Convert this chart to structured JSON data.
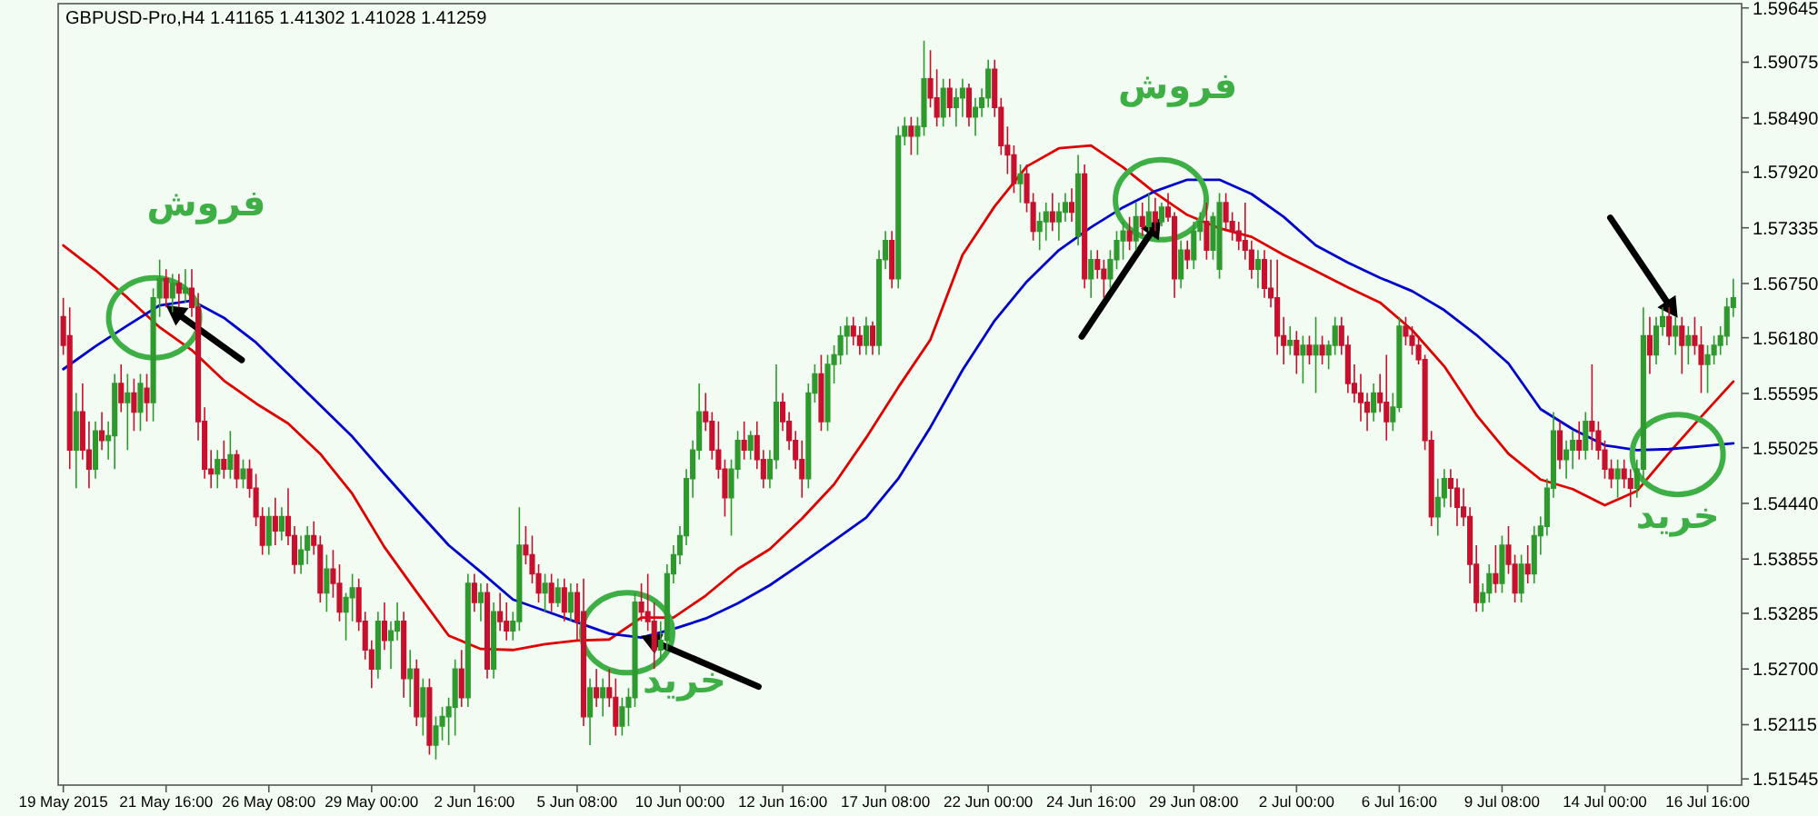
{
  "chart_data": {
    "type": "candlestick",
    "title": "GBPUSD-Pro,H4  1.41165 1.41302 1.41028 1.41259",
    "categories": [
      "19 May 2015",
      null,
      null,
      null,
      null,
      null,
      null,
      null,
      null,
      null,
      null,
      null,
      null,
      null,
      null,
      null,
      "21 May 16:00",
      null,
      null,
      null,
      null,
      null,
      null,
      null,
      null,
      null,
      null,
      null,
      null,
      null,
      null,
      null,
      "26 May 08:00",
      null,
      null,
      null,
      null,
      null,
      null,
      null,
      null,
      null,
      null,
      null,
      null,
      null,
      null,
      null,
      "29 May 00:00",
      null,
      null,
      null,
      null,
      null,
      null,
      null,
      null,
      null,
      null,
      null,
      null,
      null,
      null,
      null,
      "2 Jun 16:00",
      null,
      null,
      null,
      null,
      null,
      null,
      null,
      null,
      null,
      null,
      null,
      null,
      null,
      null,
      null,
      "5 Jun 08:00",
      null,
      null,
      null,
      null,
      null,
      null,
      null,
      null,
      null,
      null,
      null,
      null,
      null,
      null,
      null,
      "10 Jun 00:00",
      null,
      null,
      null,
      null,
      null,
      null,
      null,
      null,
      null,
      null,
      null,
      null,
      null,
      null,
      null,
      "12 Jun 16:00",
      null,
      null,
      null,
      null,
      null,
      null,
      null,
      null,
      null,
      null,
      null,
      null,
      null,
      null,
      null,
      "17 Jun 08:00",
      null,
      null,
      null,
      null,
      null,
      null,
      null,
      null,
      null,
      null,
      null,
      null,
      null,
      null,
      null,
      "22 Jun 00:00",
      null,
      null,
      null,
      null,
      null,
      null,
      null,
      null,
      null,
      null,
      null,
      null,
      null,
      null,
      null,
      "24 Jun 16:00",
      null,
      null,
      null,
      null,
      null,
      null,
      null,
      null,
      null,
      null,
      null,
      null,
      null,
      null,
      null,
      "29 Jun 08:00",
      null,
      null,
      null,
      null,
      null,
      null,
      null,
      null,
      null,
      null,
      null,
      null,
      null,
      null,
      null,
      "2 Jul 00:00",
      null,
      null,
      null,
      null,
      null,
      null,
      null,
      null,
      null,
      null,
      null,
      null,
      null,
      null,
      null,
      "6 Jul 16:00",
      null,
      null,
      null,
      null,
      null,
      null,
      null,
      null,
      null,
      null,
      null,
      null,
      null,
      null,
      null,
      "9 Jul 08:00",
      null,
      null,
      null,
      null,
      null,
      null,
      null,
      null,
      null,
      null,
      null,
      null,
      null,
      null,
      null,
      "14 Jul 00:00",
      null,
      null,
      null,
      null,
      null,
      null,
      null,
      null,
      null,
      null,
      null,
      null,
      null,
      null,
      null,
      "16 Jul 16:00",
      null,
      null,
      null,
      null
    ],
    "ohlc": [
      [
        1.564,
        1.566,
        1.56,
        1.561
      ],
      [
        1.562,
        1.565,
        1.548,
        1.55
      ],
      [
        1.55,
        1.556,
        1.546,
        1.554
      ],
      [
        1.554,
        1.557,
        1.549,
        1.55
      ],
      [
        1.55,
        1.553,
        1.546,
        1.548
      ],
      [
        1.548,
        1.553,
        1.547,
        1.552
      ],
      [
        1.552,
        1.554,
        1.55,
        1.551
      ],
      [
        1.551,
        1.553,
        1.549,
        1.5515
      ],
      [
        1.5515,
        1.558,
        1.548,
        1.557
      ],
      [
        1.557,
        1.559,
        1.554,
        1.555
      ],
      [
        1.555,
        1.558,
        1.55,
        1.556
      ],
      [
        1.556,
        1.5575,
        1.552,
        1.554
      ],
      [
        1.554,
        1.558,
        1.552,
        1.557
      ],
      [
        1.5565,
        1.558,
        1.553,
        1.555
      ],
      [
        1.555,
        1.567,
        1.553,
        1.566
      ],
      [
        1.566,
        1.57,
        1.564,
        1.568
      ],
      [
        1.568,
        1.569,
        1.565,
        1.566
      ],
      [
        1.566,
        1.5685,
        1.5645,
        1.5675
      ],
      [
        1.5675,
        1.5685,
        1.565,
        1.5665
      ],
      [
        1.5665,
        1.569,
        1.5655,
        1.567
      ],
      [
        1.567,
        1.569,
        1.564,
        1.565
      ],
      [
        1.565,
        1.5665,
        1.551,
        1.553
      ],
      [
        1.553,
        1.5545,
        1.547,
        1.548
      ],
      [
        1.548,
        1.55,
        1.546,
        1.5475
      ],
      [
        1.5475,
        1.55,
        1.546,
        1.549
      ],
      [
        1.549,
        1.551,
        1.547,
        1.548
      ],
      [
        1.548,
        1.552,
        1.547,
        1.5495
      ],
      [
        1.5495,
        1.55,
        1.546,
        1.547
      ],
      [
        1.547,
        1.549,
        1.546,
        1.548
      ],
      [
        1.548,
        1.549,
        1.545,
        1.546
      ],
      [
        1.546,
        1.5475,
        1.542,
        1.543
      ],
      [
        1.543,
        1.544,
        1.539,
        1.54
      ],
      [
        1.54,
        1.544,
        1.539,
        1.543
      ],
      [
        1.543,
        1.545,
        1.54,
        1.5415
      ],
      [
        1.5415,
        1.544,
        1.5405,
        1.543
      ],
      [
        1.543,
        1.546,
        1.54,
        1.541
      ],
      [
        1.541,
        1.542,
        1.537,
        1.538
      ],
      [
        1.538,
        1.541,
        1.537,
        1.5395
      ],
      [
        1.5395,
        1.542,
        1.538,
        1.541
      ],
      [
        1.541,
        1.5425,
        1.539,
        1.54
      ],
      [
        1.54,
        1.541,
        1.534,
        1.535
      ],
      [
        1.535,
        1.539,
        1.533,
        1.5375
      ],
      [
        1.5375,
        1.5395,
        1.5345,
        1.536
      ],
      [
        1.536,
        1.538,
        1.532,
        1.533
      ],
      [
        1.533,
        1.535,
        1.53,
        1.5345
      ],
      [
        1.5345,
        1.537,
        1.532,
        1.5355
      ],
      [
        1.5355,
        1.5365,
        1.531,
        1.532
      ],
      [
        1.532,
        1.533,
        1.528,
        1.529
      ],
      [
        1.529,
        1.53,
        1.525,
        1.527
      ],
      [
        1.527,
        1.533,
        1.526,
        1.532
      ],
      [
        1.532,
        1.534,
        1.529,
        1.53
      ],
      [
        1.53,
        1.532,
        1.527,
        1.531
      ],
      [
        1.531,
        1.534,
        1.53,
        1.532
      ],
      [
        1.532,
        1.533,
        1.524,
        1.526
      ],
      [
        1.526,
        1.529,
        1.523,
        1.527
      ],
      [
        1.527,
        1.528,
        1.521,
        1.522
      ],
      [
        1.522,
        1.526,
        1.52,
        1.525
      ],
      [
        1.525,
        1.526,
        1.518,
        1.519
      ],
      [
        1.519,
        1.522,
        1.5175,
        1.521
      ],
      [
        1.521,
        1.523,
        1.5195,
        1.522
      ],
      [
        1.522,
        1.524,
        1.519,
        1.523
      ],
      [
        1.523,
        1.528,
        1.52,
        1.527
      ],
      [
        1.527,
        1.529,
        1.523,
        1.524
      ],
      [
        1.524,
        1.537,
        1.523,
        1.536
      ],
      [
        1.536,
        1.537,
        1.533,
        1.534
      ],
      [
        1.534,
        1.536,
        1.532,
        1.535
      ],
      [
        1.535,
        1.536,
        1.526,
        1.527
      ],
      [
        1.527,
        1.534,
        1.526,
        1.533
      ],
      [
        1.533,
        1.535,
        1.531,
        1.532
      ],
      [
        1.532,
        1.534,
        1.53,
        1.531
      ],
      [
        1.531,
        1.533,
        1.53,
        1.532
      ],
      [
        1.532,
        1.544,
        1.531,
        1.54
      ],
      [
        1.54,
        1.542,
        1.538,
        1.539
      ],
      [
        1.539,
        1.541,
        1.536,
        1.537
      ],
      [
        1.537,
        1.538,
        1.534,
        1.535
      ],
      [
        1.535,
        1.537,
        1.533,
        1.536
      ],
      [
        1.536,
        1.537,
        1.533,
        1.534
      ],
      [
        1.534,
        1.5365,
        1.5335,
        1.5355
      ],
      [
        1.5355,
        1.5365,
        1.532,
        1.533
      ],
      [
        1.533,
        1.536,
        1.532,
        1.535
      ],
      [
        1.535,
        1.536,
        1.53,
        1.532
      ],
      [
        1.533,
        1.5365,
        1.521,
        1.522
      ],
      [
        1.522,
        1.526,
        1.519,
        1.525
      ],
      [
        1.525,
        1.527,
        1.523,
        1.524
      ],
      [
        1.524,
        1.526,
        1.522,
        1.525
      ],
      [
        1.525,
        1.527,
        1.523,
        1.524
      ],
      [
        1.524,
        1.526,
        1.52,
        1.521
      ],
      [
        1.521,
        1.524,
        1.52,
        1.523
      ],
      [
        1.523,
        1.525,
        1.521,
        1.524
      ],
      [
        1.524,
        1.535,
        1.523,
        1.534
      ],
      [
        1.534,
        1.536,
        1.532,
        1.533
      ],
      [
        1.533,
        1.537,
        1.531,
        1.532
      ],
      [
        1.532,
        1.534,
        1.527,
        1.529
      ],
      [
        1.529,
        1.532,
        1.528,
        1.53
      ],
      [
        1.53,
        1.538,
        1.529,
        1.537
      ],
      [
        1.537,
        1.54,
        1.536,
        1.539
      ],
      [
        1.539,
        1.542,
        1.538,
        1.541
      ],
      [
        1.541,
        1.548,
        1.54,
        1.547
      ],
      [
        1.547,
        1.551,
        1.545,
        1.55
      ],
      [
        1.55,
        1.557,
        1.549,
        1.554
      ],
      [
        1.554,
        1.556,
        1.552,
        1.553
      ],
      [
        1.553,
        1.554,
        1.549,
        1.55
      ],
      [
        1.55,
        1.553,
        1.547,
        1.548
      ],
      [
        1.548,
        1.549,
        1.543,
        1.545
      ],
      [
        1.545,
        1.549,
        1.541,
        1.548
      ],
      [
        1.548,
        1.552,
        1.547,
        1.551
      ],
      [
        1.551,
        1.553,
        1.549,
        1.55
      ],
      [
        1.55,
        1.552,
        1.549,
        1.5515
      ],
      [
        1.5515,
        1.553,
        1.548,
        1.549
      ],
      [
        1.549,
        1.55,
        1.546,
        1.547
      ],
      [
        1.547,
        1.55,
        1.546,
        1.549
      ],
      [
        1.549,
        1.559,
        1.548,
        1.555
      ],
      [
        1.555,
        1.556,
        1.552,
        1.553
      ],
      [
        1.553,
        1.554,
        1.55,
        1.551
      ],
      [
        1.551,
        1.552,
        1.548,
        1.549
      ],
      [
        1.549,
        1.551,
        1.545,
        1.547
      ],
      [
        1.547,
        1.557,
        1.546,
        1.556
      ],
      [
        1.556,
        1.559,
        1.555,
        1.558
      ],
      [
        1.558,
        1.56,
        1.552,
        1.553
      ],
      [
        1.553,
        1.56,
        1.552,
        1.559
      ],
      [
        1.559,
        1.561,
        1.557,
        1.56
      ],
      [
        1.56,
        1.563,
        1.559,
        1.562
      ],
      [
        1.562,
        1.564,
        1.56,
        1.563
      ],
      [
        1.563,
        1.564,
        1.561,
        1.562
      ],
      [
        1.562,
        1.563,
        1.56,
        1.561
      ],
      [
        1.561,
        1.564,
        1.56,
        1.563
      ],
      [
        1.563,
        1.5635,
        1.56,
        1.561
      ],
      [
        1.561,
        1.571,
        1.56,
        1.57
      ],
      [
        1.57,
        1.573,
        1.569,
        1.572
      ],
      [
        1.572,
        1.573,
        1.567,
        1.568
      ],
      [
        1.568,
        1.584,
        1.567,
        1.583
      ],
      [
        1.583,
        1.585,
        1.582,
        1.584
      ],
      [
        1.584,
        1.585,
        1.581,
        1.583
      ],
      [
        1.583,
        1.585,
        1.581,
        1.584
      ],
      [
        1.584,
        1.593,
        1.583,
        1.589
      ],
      [
        1.589,
        1.592,
        1.586,
        1.587
      ],
      [
        1.587,
        1.59,
        1.584,
        1.585
      ],
      [
        1.585,
        1.589,
        1.584,
        1.588
      ],
      [
        1.588,
        1.589,
        1.585,
        1.586
      ],
      [
        1.586,
        1.588,
        1.584,
        1.587
      ],
      [
        1.587,
        1.589,
        1.585,
        1.588
      ],
      [
        1.588,
        1.5885,
        1.584,
        1.585
      ],
      [
        1.585,
        1.587,
        1.583,
        1.586
      ],
      [
        1.586,
        1.588,
        1.585,
        1.587
      ],
      [
        1.587,
        1.591,
        1.586,
        1.59
      ],
      [
        1.59,
        1.591,
        1.585,
        1.586
      ],
      [
        1.586,
        1.587,
        1.581,
        1.582
      ],
      [
        1.582,
        1.584,
        1.579,
        1.581
      ],
      [
        1.581,
        1.582,
        1.577,
        1.578
      ],
      [
        1.578,
        1.58,
        1.576,
        1.579
      ],
      [
        1.579,
        1.58,
        1.575,
        1.576
      ],
      [
        1.576,
        1.577,
        1.572,
        1.573
      ],
      [
        1.573,
        1.575,
        1.571,
        1.574
      ],
      [
        1.574,
        1.576,
        1.572,
        1.575
      ],
      [
        1.575,
        1.577,
        1.573,
        1.574
      ],
      [
        1.574,
        1.576,
        1.572,
        1.575
      ],
      [
        1.575,
        1.577,
        1.574,
        1.576
      ],
      [
        1.576,
        1.5775,
        1.574,
        1.575
      ],
      [
        1.5725,
        1.581,
        1.5715,
        1.579
      ],
      [
        1.579,
        1.58,
        1.567,
        1.568
      ],
      [
        1.568,
        1.571,
        1.566,
        1.57
      ],
      [
        1.57,
        1.571,
        1.568,
        1.569
      ],
      [
        1.569,
        1.57,
        1.566,
        1.568
      ],
      [
        1.568,
        1.571,
        1.567,
        1.57
      ],
      [
        1.57,
        1.573,
        1.569,
        1.572
      ],
      [
        1.572,
        1.574,
        1.57,
        1.573
      ],
      [
        1.573,
        1.5745,
        1.571,
        1.572
      ],
      [
        1.572,
        1.576,
        1.571,
        1.5745
      ],
      [
        1.5745,
        1.576,
        1.5725,
        1.5735
      ],
      [
        1.5735,
        1.577,
        1.573,
        1.575
      ],
      [
        1.575,
        1.5765,
        1.573,
        1.574
      ],
      [
        1.574,
        1.576,
        1.5735,
        1.5755
      ],
      [
        1.5755,
        1.577,
        1.574,
        1.5745
      ],
      [
        1.5745,
        1.575,
        1.566,
        1.568
      ],
      [
        1.568,
        1.572,
        1.567,
        1.571
      ],
      [
        1.571,
        1.572,
        1.569,
        1.57
      ],
      [
        1.57,
        1.574,
        1.569,
        1.573
      ],
      [
        1.573,
        1.575,
        1.572,
        1.574
      ],
      [
        1.574,
        1.576,
        1.57,
        1.571
      ],
      [
        1.571,
        1.575,
        1.57,
        1.5745
      ],
      [
        1.569,
        1.577,
        1.568,
        1.576
      ],
      [
        1.576,
        1.577,
        1.573,
        1.574
      ],
      [
        1.574,
        1.575,
        1.572,
        1.573
      ],
      [
        1.573,
        1.574,
        1.571,
        1.572
      ],
      [
        1.572,
        1.576,
        1.57,
        1.571
      ],
      [
        1.571,
        1.572,
        1.568,
        1.569
      ],
      [
        1.569,
        1.571,
        1.567,
        1.57
      ],
      [
        1.57,
        1.571,
        1.566,
        1.567
      ],
      [
        1.567,
        1.57,
        1.565,
        1.566
      ],
      [
        1.566,
        1.57,
        1.56,
        1.562
      ],
      [
        1.562,
        1.564,
        1.559,
        1.561
      ],
      [
        1.561,
        1.563,
        1.56,
        1.5615
      ],
      [
        1.5615,
        1.5625,
        1.558,
        1.56
      ],
      [
        1.56,
        1.562,
        1.557,
        1.561
      ],
      [
        1.561,
        1.562,
        1.559,
        1.56
      ],
      [
        1.56,
        1.564,
        1.556,
        1.561
      ],
      [
        1.561,
        1.562,
        1.559,
        1.56
      ],
      [
        1.56,
        1.5615,
        1.5585,
        1.561
      ],
      [
        1.561,
        1.564,
        1.56,
        1.563
      ],
      [
        1.563,
        1.564,
        1.56,
        1.561
      ],
      [
        1.561,
        1.562,
        1.556,
        1.557
      ],
      [
        1.557,
        1.559,
        1.555,
        1.556
      ],
      [
        1.556,
        1.558,
        1.553,
        1.555
      ],
      [
        1.555,
        1.556,
        1.552,
        1.554
      ],
      [
        1.554,
        1.557,
        1.553,
        1.556
      ],
      [
        1.556,
        1.558,
        1.554,
        1.555
      ],
      [
        1.555,
        1.56,
        1.551,
        1.553
      ],
      [
        1.553,
        1.556,
        1.552,
        1.5545
      ],
      [
        1.5545,
        1.564,
        1.554,
        1.563
      ],
      [
        1.563,
        1.564,
        1.561,
        1.562
      ],
      [
        1.562,
        1.563,
        1.56,
        1.561
      ],
      [
        1.561,
        1.562,
        1.559,
        1.5595
      ],
      [
        1.5595,
        1.56,
        1.55,
        1.551
      ],
      [
        1.551,
        1.552,
        1.542,
        1.543
      ],
      [
        1.543,
        1.547,
        1.541,
        1.545
      ],
      [
        1.545,
        1.548,
        1.544,
        1.547
      ],
      [
        1.547,
        1.548,
        1.544,
        1.546
      ],
      [
        1.546,
        1.547,
        1.542,
        1.544
      ],
      [
        1.544,
        1.546,
        1.542,
        1.543
      ],
      [
        1.543,
        1.544,
        1.536,
        1.538
      ],
      [
        1.538,
        1.54,
        1.533,
        1.534
      ],
      [
        1.534,
        1.536,
        1.533,
        1.535
      ],
      [
        1.535,
        1.538,
        1.534,
        1.537
      ],
      [
        1.537,
        1.54,
        1.535,
        1.536
      ],
      [
        1.536,
        1.541,
        1.535,
        1.54
      ],
      [
        1.54,
        1.542,
        1.537,
        1.538
      ],
      [
        1.538,
        1.539,
        1.534,
        1.535
      ],
      [
        1.535,
        1.539,
        1.534,
        1.538
      ],
      [
        1.538,
        1.54,
        1.536,
        1.537
      ],
      [
        1.537,
        1.542,
        1.536,
        1.541
      ],
      [
        1.541,
        1.543,
        1.539,
        1.542
      ],
      [
        1.542,
        1.547,
        1.541,
        1.546
      ],
      [
        1.546,
        1.554,
        1.545,
        1.552
      ],
      [
        1.552,
        1.553,
        1.548,
        1.549
      ],
      [
        1.549,
        1.551,
        1.547,
        1.55
      ],
      [
        1.55,
        1.552,
        1.548,
        1.551
      ],
      [
        1.551,
        1.553,
        1.549,
        1.55
      ],
      [
        1.55,
        1.554,
        1.549,
        1.553
      ],
      [
        1.553,
        1.559,
        1.55,
        1.552
      ],
      [
        1.552,
        1.553,
        1.549,
        1.55
      ],
      [
        1.55,
        1.551,
        1.547,
        1.548
      ],
      [
        1.548,
        1.549,
        1.546,
        1.547
      ],
      [
        1.547,
        1.549,
        1.545,
        1.548
      ],
      [
        1.548,
        1.549,
        1.546,
        1.547
      ],
      [
        1.547,
        1.548,
        1.544,
        1.546
      ],
      [
        1.546,
        1.549,
        1.545,
        1.548
      ],
      [
        1.548,
        1.565,
        1.547,
        1.562
      ],
      [
        1.562,
        1.564,
        1.558,
        1.56
      ],
      [
        1.56,
        1.564,
        1.559,
        1.563
      ],
      [
        1.563,
        1.565,
        1.562,
        1.564
      ],
      [
        1.564,
        1.565,
        1.561,
        1.562
      ],
      [
        1.562,
        1.564,
        1.56,
        1.563
      ],
      [
        1.563,
        1.564,
        1.558,
        1.561
      ],
      [
        1.561,
        1.563,
        1.559,
        1.562
      ],
      [
        1.562,
        1.564,
        1.56,
        1.561
      ],
      [
        1.561,
        1.563,
        1.556,
        1.559
      ],
      [
        1.559,
        1.561,
        1.556,
        1.56
      ],
      [
        1.56,
        1.562,
        1.559,
        1.561
      ],
      [
        1.561,
        1.563,
        1.56,
        1.562
      ],
      [
        1.562,
        1.566,
        1.561,
        1.565
      ],
      [
        1.565,
        1.568,
        1.564,
        1.566
      ]
    ],
    "series": [
      {
        "type": "line",
        "color": "#e00000",
        "values": [
          1.5715,
          null,
          null,
          null,
          null,
          1.5689,
          null,
          null,
          null,
          null,
          1.566,
          null,
          null,
          null,
          null,
          1.5629,
          null,
          null,
          null,
          null,
          1.5605,
          null,
          null,
          null,
          null,
          1.5573,
          null,
          null,
          null,
          null,
          1.5549,
          null,
          null,
          null,
          null,
          1.5528,
          null,
          null,
          null,
          null,
          1.5496,
          null,
          null,
          null,
          null,
          1.5454,
          null,
          null,
          null,
          null,
          1.5398,
          null,
          null,
          null,
          null,
          1.5351,
          null,
          null,
          null,
          null,
          1.5305,
          null,
          null,
          null,
          null,
          1.5291,
          null,
          null,
          null,
          null,
          1.529,
          null,
          null,
          null,
          null,
          1.5296,
          null,
          null,
          null,
          null,
          1.53,
          null,
          null,
          null,
          null,
          1.5301,
          null,
          null,
          null,
          null,
          1.5324,
          null,
          null,
          null,
          null,
          1.5324,
          null,
          null,
          null,
          null,
          1.5347,
          null,
          null,
          null,
          null,
          1.5375,
          null,
          null,
          null,
          null,
          1.5396,
          null,
          null,
          null,
          null,
          1.5428,
          null,
          null,
          null,
          null,
          1.5464,
          null,
          null,
          null,
          null,
          1.5513,
          null,
          null,
          null,
          null,
          1.5566,
          null,
          null,
          null,
          null,
          1.5616,
          null,
          null,
          null,
          null,
          1.5705,
          null,
          null,
          null,
          null,
          1.5756,
          null,
          null,
          null,
          null,
          1.5798,
          null,
          null,
          null,
          null,
          1.5817,
          null,
          null,
          null,
          null,
          1.582,
          null,
          null,
          null,
          null,
          1.5797,
          null,
          null,
          null,
          null,
          1.577,
          null,
          null,
          null,
          null,
          1.5747,
          null,
          null,
          null,
          null,
          1.5733,
          null,
          null,
          null,
          null,
          1.5724,
          null,
          null,
          null,
          null,
          1.5705,
          null,
          null,
          null,
          null,
          1.5688,
          null,
          null,
          null,
          null,
          1.5671,
          null,
          null,
          null,
          null,
          1.5655,
          null,
          null,
          null,
          null,
          1.5626,
          null,
          null,
          null,
          null,
          1.5588,
          null,
          null,
          null,
          null,
          1.5537,
          null,
          null,
          null,
          null,
          1.5496,
          null,
          null,
          null,
          null,
          1.5469,
          null,
          null,
          null,
          null,
          1.5459,
          null,
          null,
          null,
          null,
          1.5442,
          null,
          null,
          null,
          null,
          1.5457,
          null,
          null,
          null,
          null,
          1.5497,
          null,
          null,
          null,
          null,
          1.5535,
          null,
          null,
          null,
          null,
          1.5572
        ]
      },
      {
        "type": "line",
        "color": "#0000cc",
        "values": [
          1.5585,
          null,
          null,
          null,
          null,
          1.5609,
          null,
          null,
          null,
          null,
          1.5631,
          null,
          null,
          null,
          null,
          1.5652,
          null,
          null,
          null,
          null,
          1.5657,
          null,
          null,
          null,
          null,
          1.5639,
          null,
          null,
          null,
          null,
          1.5613,
          null,
          null,
          null,
          null,
          1.558,
          null,
          null,
          null,
          null,
          1.5547,
          null,
          null,
          null,
          null,
          1.5514,
          null,
          null,
          null,
          null,
          1.5475,
          null,
          null,
          null,
          null,
          1.5437,
          null,
          null,
          null,
          null,
          1.54,
          null,
          null,
          null,
          null,
          1.5372,
          null,
          null,
          null,
          null,
          1.5343,
          null,
          null,
          null,
          null,
          1.5331,
          null,
          null,
          null,
          null,
          1.5319,
          null,
          null,
          null,
          null,
          1.5307,
          null,
          null,
          null,
          null,
          1.5303,
          null,
          null,
          null,
          null,
          1.5312,
          null,
          null,
          null,
          null,
          1.5323,
          null,
          null,
          null,
          null,
          1.5339,
          null,
          null,
          null,
          null,
          1.5358,
          null,
          null,
          null,
          null,
          1.5381,
          null,
          null,
          null,
          null,
          1.5405,
          null,
          null,
          null,
          null,
          1.5429,
          null,
          null,
          null,
          null,
          1.547,
          null,
          null,
          null,
          null,
          1.5524,
          null,
          null,
          null,
          null,
          1.5584,
          null,
          null,
          null,
          null,
          1.5636,
          null,
          null,
          null,
          null,
          1.5677,
          null,
          null,
          null,
          null,
          1.571,
          null,
          null,
          null,
          null,
          1.5734,
          null,
          null,
          null,
          null,
          1.5755,
          null,
          null,
          null,
          null,
          1.5772,
          null,
          null,
          null,
          null,
          1.5784,
          null,
          null,
          null,
          null,
          1.5784,
          null,
          null,
          null,
          null,
          1.5769,
          null,
          null,
          null,
          null,
          1.5745,
          null,
          null,
          null,
          null,
          1.5715,
          null,
          null,
          null,
          null,
          1.5697,
          null,
          null,
          null,
          null,
          1.5681,
          null,
          null,
          null,
          null,
          1.5667,
          null,
          null,
          null,
          null,
          1.5647,
          null,
          null,
          null,
          null,
          1.5621,
          null,
          null,
          null,
          null,
          1.5591,
          null,
          null,
          null,
          null,
          1.5543,
          null,
          null,
          null,
          null,
          1.5522,
          null,
          null,
          null,
          null,
          1.5505,
          null,
          null,
          null,
          null,
          1.55,
          null,
          null,
          null,
          null,
          1.5501,
          null,
          null,
          null,
          null,
          1.5504,
          null,
          null,
          null,
          null,
          1.5507
        ]
      }
    ],
    "ylim": [
      1.5148,
      1.5969
    ],
    "yticks": [
      {
        "value": 1.51545,
        "label": "1.51545"
      },
      {
        "value": 1.52115,
        "label": "1.52115"
      },
      {
        "value": 1.527,
        "label": "1.52700"
      },
      {
        "value": 1.53285,
        "label": "1.53285"
      },
      {
        "value": 1.53855,
        "label": "1.53855"
      },
      {
        "value": 1.5444,
        "label": "1.54440"
      },
      {
        "value": 1.55025,
        "label": "1.55025"
      },
      {
        "value": 1.55595,
        "label": "1.55595"
      },
      {
        "value": 1.5618,
        "label": "1.56180"
      },
      {
        "value": 1.5675,
        "label": "1.56750"
      },
      {
        "value": 1.57335,
        "label": "1.57335"
      },
      {
        "value": 1.5792,
        "label": "1.57920"
      },
      {
        "value": 1.5849,
        "label": "1.58490"
      },
      {
        "value": 1.59075,
        "label": "1.59075"
      },
      {
        "value": 1.59645,
        "label": "1.59645"
      }
    ],
    "annotations": [
      "فروش",
      "فروش",
      "خرید",
      "خرید"
    ]
  }
}
